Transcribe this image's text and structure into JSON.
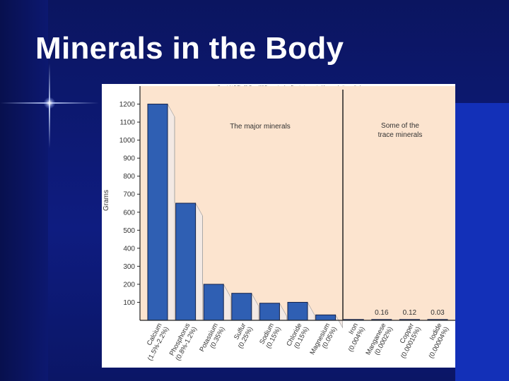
{
  "slide": {
    "title": "Minerals in the Body"
  },
  "colors": {
    "bar": "#2f5fb3",
    "bar_stroke": "#13224a",
    "shadow": "#f3e9e4",
    "plot_bg": "#fce4cf"
  },
  "chart_data": {
    "type": "bar",
    "copyright": "Copyright © The McGraw-Hill Companies, Inc. Permission required for reproduction or display.",
    "ylabel": "Grams",
    "xlabel": "",
    "ylim": [
      0,
      1300
    ],
    "yticks": [
      100,
      200,
      300,
      400,
      500,
      600,
      700,
      800,
      900,
      1000,
      1100,
      1200
    ],
    "ytick_labels": [
      "100",
      "200",
      "300",
      "400",
      "500",
      "600",
      "700",
      "800",
      "900",
      "1000",
      "1100",
      "1200"
    ],
    "group_labels": [
      "The major minerals",
      "Some of the trace minerals"
    ],
    "categories": [
      "Calcium (1.5%-2.2%)",
      "Phosphorus (0.8%-1.2%)",
      "Potassium (0.35%)",
      "Sulfur (0.25%)",
      "Sodium (0.15%)",
      "Chloride (0.15%)",
      "Magnesium (0.05%)",
      "Iron (0.004%)",
      "Manganese (0.0002%)",
      "Copper (0.00015%)",
      "Iodide (0.00004%)"
    ],
    "values": [
      1200,
      650,
      200,
      150,
      95,
      100,
      30,
      4,
      0.16,
      0.12,
      0.03
    ],
    "data_labels": [
      "",
      "",
      "",
      "",
      "",
      "",
      "",
      "",
      "0.16",
      "0.12",
      "0.03"
    ]
  }
}
